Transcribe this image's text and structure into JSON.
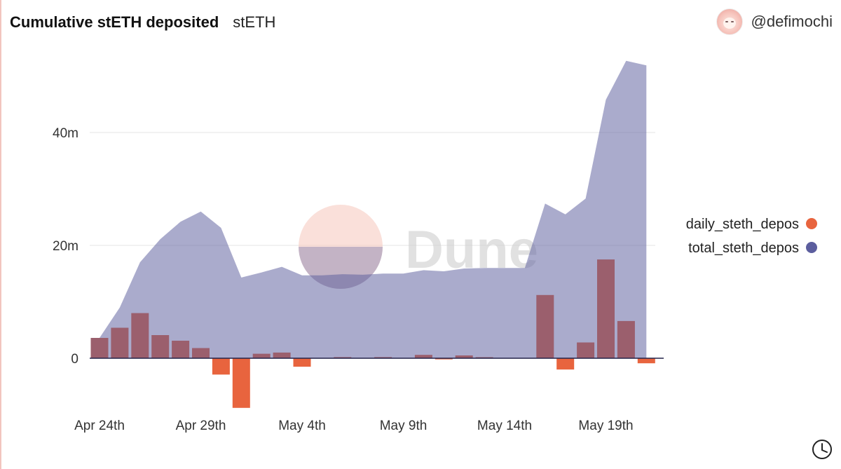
{
  "header": {
    "title": "Cumulative stETH deposited",
    "subtitle": "stETH"
  },
  "author": {
    "handle": "@defimochi"
  },
  "watermark": {
    "text": "Dune"
  },
  "colors": {
    "daily": "#e8643e",
    "total": "#5c5e9e",
    "overlap": "#9b5f6d"
  },
  "chart_data": {
    "type": "bar",
    "x": [
      "Apr 24th",
      "Apr 25th",
      "Apr 26th",
      "Apr 27th",
      "Apr 28th",
      "Apr 29th",
      "Apr 30th",
      "May 1st",
      "May 2nd",
      "May 3rd",
      "May 4th",
      "May 5th",
      "May 6th",
      "May 7th",
      "May 8th",
      "May 9th",
      "May 10th",
      "May 11th",
      "May 12th",
      "May 13th",
      "May 14th",
      "May 15th",
      "May 16th",
      "May 17th",
      "May 18th",
      "May 19th",
      "May 20th",
      "May 21st"
    ],
    "x_tick_labels": [
      "Apr 24th",
      "Apr 29th",
      "May 4th",
      "May 9th",
      "May 14th",
      "May 19th"
    ],
    "series": [
      {
        "name": "daily_steth_depos",
        "type": "bar",
        "values": [
          3.6,
          5.4,
          8.0,
          4.1,
          3.1,
          1.8,
          -2.9,
          -8.8,
          0.8,
          1.0,
          -1.5,
          0.0,
          0.2,
          0.0,
          0.2,
          0.0,
          0.6,
          -0.2,
          0.5,
          0.1,
          0.0,
          0.0,
          11.2,
          -2.0,
          2.8,
          17.5,
          6.6,
          -0.9
        ]
      },
      {
        "name": "total_steth_depos",
        "type": "area",
        "values": [
          3.6,
          9.0,
          17.0,
          21.1,
          24.2,
          26.0,
          23.1,
          14.3,
          15.2,
          16.2,
          14.7,
          14.7,
          14.9,
          14.8,
          15.0,
          15.0,
          15.6,
          15.4,
          15.9,
          16.0,
          16.0,
          16.0,
          27.4,
          25.5,
          28.3,
          45.8,
          52.7,
          51.9
        ]
      }
    ],
    "y_ticks": [
      "0",
      "20m",
      "40m"
    ],
    "y_tick_values": [
      0,
      20,
      40
    ],
    "ylim": [
      -10,
      55
    ],
    "y_unit": "millions",
    "legend_position": "right",
    "grid": true
  }
}
